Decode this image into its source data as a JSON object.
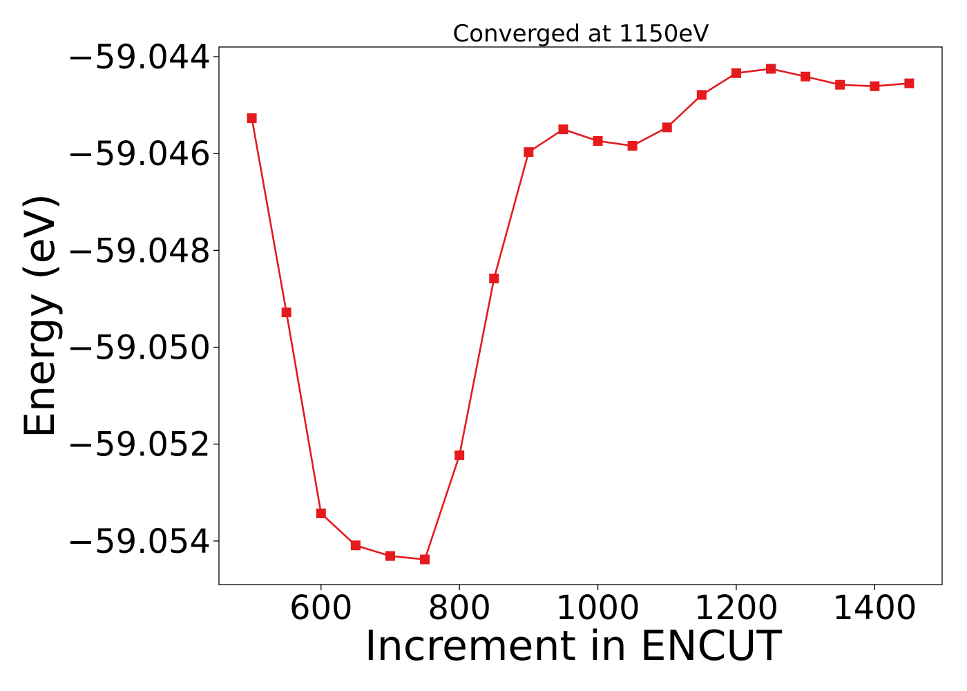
{
  "chart_data": {
    "type": "line",
    "title": "Converged at 1150eV",
    "xlabel": "Increment in ENCUT",
    "ylabel": "Energy (eV)",
    "xlim": [
      452.5,
      1497.5
    ],
    "ylim": [
      -59.0549,
      -59.0438
    ],
    "x_ticks": [
      600,
      800,
      1000,
      1200,
      1400
    ],
    "x_tick_labels": [
      "600",
      "800",
      "1000",
      "1200",
      "1400"
    ],
    "y_ticks": [
      -59.044,
      -59.046,
      -59.048,
      -59.05,
      -59.052,
      -59.054
    ],
    "y_tick_labels": [
      "−59.044",
      "−59.046",
      "−59.048",
      "−59.050",
      "−59.052",
      "−59.054"
    ],
    "grid": false,
    "series": [
      {
        "color": "#e41a1c",
        "marker": "square",
        "x": [
          500,
          550,
          600,
          650,
          700,
          750,
          800,
          850,
          900,
          950,
          1000,
          1050,
          1100,
          1150,
          1200,
          1250,
          1300,
          1350,
          1400,
          1450
        ],
        "y": [
          -59.04527,
          -59.04928,
          -59.05343,
          -59.05409,
          -59.05431,
          -59.05438,
          -59.05223,
          -59.04858,
          -59.04597,
          -59.0455,
          -59.04574,
          -59.04584,
          -59.04546,
          -59.04479,
          -59.04434,
          -59.04425,
          -59.04441,
          -59.04458,
          -59.04461,
          -59.04455
        ]
      }
    ]
  }
}
